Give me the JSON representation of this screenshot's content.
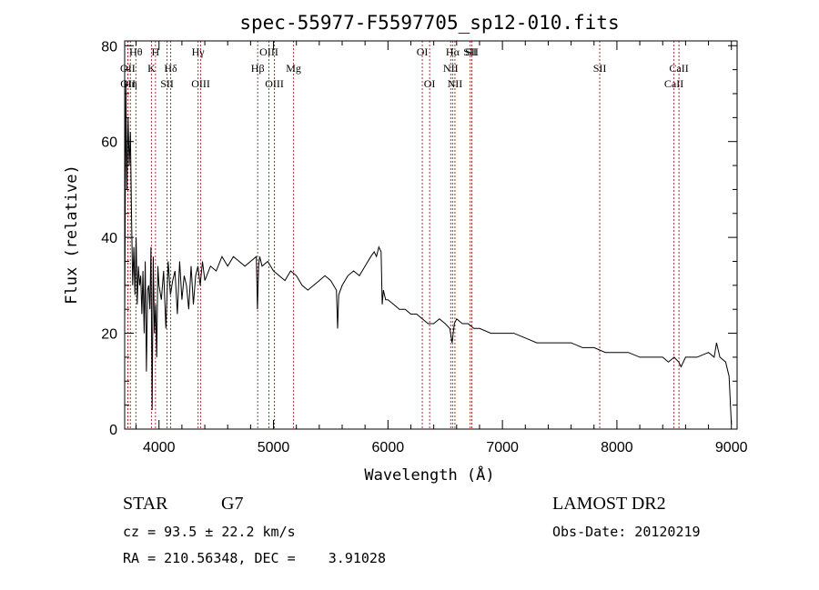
{
  "chart_data": {
    "type": "line",
    "title": "spec-55977-F5597705_sp12-010.fits",
    "xlabel": "Wavelength (Å)",
    "ylabel": "Flux (relative)",
    "xlim": [
      3700,
      9050
    ],
    "ylim": [
      0,
      81
    ],
    "xticks": [
      4000,
      5000,
      6000,
      7000,
      8000,
      9000
    ],
    "yticks": [
      0,
      20,
      40,
      60,
      80
    ],
    "grid": false,
    "series": [
      {
        "x": [
          3700,
          3710,
          3720,
          3730,
          3740,
          3750,
          3760,
          3770,
          3780,
          3790,
          3800,
          3810,
          3820,
          3830,
          3840,
          3850,
          3860,
          3870,
          3880,
          3890,
          3900,
          3910,
          3920,
          3930,
          3940,
          3950,
          3960,
          3970,
          3980,
          3990,
          4000,
          4020,
          4040,
          4060,
          4080,
          4100,
          4120,
          4140,
          4160,
          4180,
          4200,
          4220,
          4240,
          4260,
          4280,
          4300,
          4320,
          4340,
          4360,
          4380,
          4400,
          4450,
          4500,
          4550,
          4600,
          4650,
          4700,
          4750,
          4800,
          4850,
          4860,
          4870,
          4880,
          4900,
          4950,
          5000,
          5050,
          5100,
          5150,
          5200,
          5250,
          5300,
          5350,
          5400,
          5450,
          5500,
          5550,
          5560,
          5570,
          5600,
          5650,
          5700,
          5750,
          5800,
          5850,
          5880,
          5900,
          5920,
          5940,
          5950,
          5960,
          5980,
          6000,
          6050,
          6100,
          6150,
          6200,
          6250,
          6300,
          6350,
          6400,
          6450,
          6500,
          6540,
          6560,
          6570,
          6580,
          6600,
          6650,
          6700,
          6750,
          6800,
          6900,
          7000,
          7100,
          7200,
          7300,
          7400,
          7500,
          7600,
          7700,
          7800,
          7900,
          8000,
          8100,
          8200,
          8300,
          8400,
          8450,
          8500,
          8540,
          8560,
          8600,
          8700,
          8800,
          8850,
          8870,
          8900,
          8950,
          8980,
          9000
        ],
        "values": [
          22,
          72,
          50,
          65,
          55,
          62,
          45,
          30,
          38,
          28,
          40,
          26,
          34,
          30,
          32,
          24,
          33,
          20,
          35,
          12,
          29,
          30,
          25,
          38,
          4,
          36,
          20,
          26,
          15,
          34,
          30,
          27,
          33,
          21,
          35,
          28,
          31,
          33,
          24,
          35,
          27,
          32,
          30,
          25,
          34,
          26,
          32,
          34,
          30,
          35,
          31,
          34,
          33,
          36,
          34,
          36,
          35,
          34,
          35,
          36,
          25,
          34,
          36,
          34,
          35,
          33,
          32,
          31,
          33,
          32,
          30,
          29,
          30,
          31,
          32,
          31,
          29,
          21,
          28,
          30,
          32,
          33,
          32,
          34,
          36,
          37,
          36,
          38,
          37,
          26,
          29,
          27,
          27,
          26,
          25,
          25,
          24,
          24,
          23,
          22,
          22,
          23,
          22,
          21,
          18,
          20,
          22,
          23,
          22,
          22,
          21,
          21,
          20,
          20,
          20,
          19,
          18,
          18,
          18,
          18,
          17,
          17,
          16,
          16,
          16,
          15,
          15,
          15,
          14,
          15,
          14,
          13,
          15,
          15,
          16,
          15,
          18,
          15,
          14,
          11,
          1
        ]
      }
    ],
    "lines": [
      {
        "x": 3727,
        "label": "OII",
        "row": 2
      },
      {
        "x": 3729,
        "label": "OII",
        "row": 3
      },
      {
        "x": 3750,
        "label": "Hη",
        "row": 3
      },
      {
        "x": 3798,
        "label": "Hθ",
        "row": 1
      },
      {
        "x": 3934,
        "label": "K",
        "row": 2
      },
      {
        "x": 3969,
        "label": "H",
        "row": 1
      },
      {
        "x": 4070,
        "label": "SII",
        "row": 3
      },
      {
        "x": 4102,
        "label": "Hδ",
        "row": 2
      },
      {
        "x": 4341,
        "label": "Hγ",
        "row": 1
      },
      {
        "x": 4364,
        "label": "OIII",
        "row": 3
      },
      {
        "x": 4862,
        "label": "Hβ",
        "row": 2
      },
      {
        "x": 4960,
        "label": "OIII",
        "row": 1
      },
      {
        "x": 5008,
        "label": "OIII",
        "row": 3
      },
      {
        "x": 5175,
        "label": "Mg",
        "row": 2
      },
      {
        "x": 6300,
        "label": "OI",
        "row": 1
      },
      {
        "x": 6364,
        "label": "OI",
        "row": 3
      },
      {
        "x": 6548,
        "label": "NII",
        "row": 2
      },
      {
        "x": 6565,
        "label": "Hα",
        "row": 1
      },
      {
        "x": 6585,
        "label": "NII",
        "row": 3
      },
      {
        "x": 6718,
        "label": "SII",
        "row": 1
      },
      {
        "x": 6733,
        "label": "SII",
        "row": 1
      },
      {
        "x": 7850,
        "label": "SII",
        "row": 2
      },
      {
        "x": 8498,
        "label": "CaII",
        "row": 3
      },
      {
        "x": 8542,
        "label": "CaII",
        "row": 2
      }
    ]
  },
  "info": {
    "class": "STAR",
    "subclass": "G7",
    "survey": "LAMOST DR2",
    "cz": "cz = 93.5 ± 22.2 km/s",
    "obs_date": "Obs-Date: 20120219",
    "coords": "RA = 210.56348, DEC =    3.91028"
  }
}
